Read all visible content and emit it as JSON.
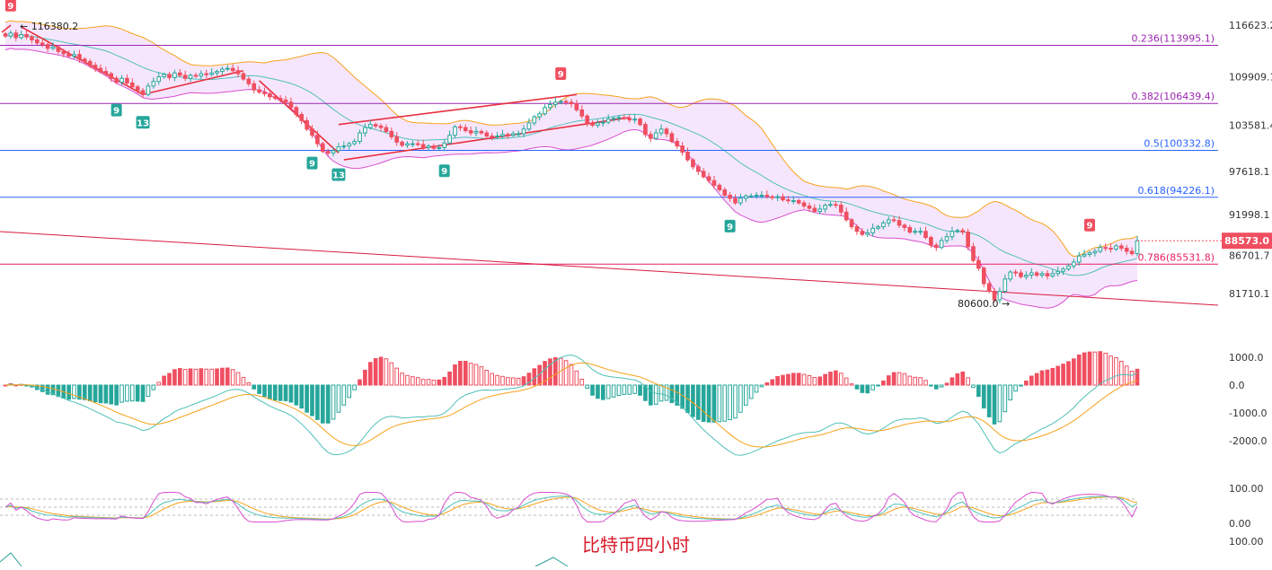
{
  "caption": "比特币四小时",
  "chart_data": {
    "type": "candlestick",
    "main_axis": {
      "min": 77000,
      "max": 117500,
      "ticks": [
        116623.2,
        109909.1,
        103581.4,
        97618.1,
        91998.1,
        86701.7,
        81710.1
      ]
    },
    "current_price": 88573.0,
    "current_price_label": "88573.0",
    "high_label": "116380.2",
    "low_label": "80600.0 →",
    "fib_levels": [
      {
        "label": "0.236(113995.1)",
        "value": 113995.1,
        "color": "#9c27b0"
      },
      {
        "label": "0.382(106439.4)",
        "value": 106439.4,
        "color": "#9c27b0"
      },
      {
        "label": "0.5(100332.8)",
        "value": 100332.8,
        "color": "#2962ff"
      },
      {
        "label": "0.618(94226.1)",
        "value": 94226.1,
        "color": "#2962ff"
      },
      {
        "label": "0.786(85531.8)",
        "value": 85531.8,
        "color": "#e91e63"
      }
    ],
    "td_markers": [
      {
        "text": "9",
        "index": 1,
        "pos": "above",
        "color": "#ef4f60"
      },
      {
        "text": "9",
        "index": 21,
        "pos": "below",
        "color": "#26a69a"
      },
      {
        "text": "13",
        "index": 26,
        "pos": "below",
        "color": "#26a69a"
      },
      {
        "text": "9",
        "index": 58,
        "pos": "below",
        "color": "#26a69a"
      },
      {
        "text": "13",
        "index": 63,
        "pos": "below",
        "color": "#26a69a"
      },
      {
        "text": "9",
        "index": 83,
        "pos": "below",
        "color": "#26a69a"
      },
      {
        "text": "9",
        "index": 105,
        "pos": "above",
        "color": "#ef4f60"
      },
      {
        "text": "9",
        "index": 137,
        "pos": "below",
        "color": "#26a69a"
      },
      {
        "text": "9",
        "index": 205,
        "pos": "above",
        "color": "#ef4f60"
      }
    ],
    "closes": [
      115200,
      115600,
      115000,
      115400,
      115100,
      114700,
      114300,
      114100,
      113600,
      113800,
      113200,
      112900,
      112600,
      112800,
      112200,
      111900,
      111400,
      111000,
      110600,
      110300,
      109700,
      109200,
      109700,
      109100,
      108600,
      108100,
      107600,
      108700,
      109300,
      109900,
      110200,
      109800,
      110400,
      110100,
      109700,
      110100,
      110000,
      110300,
      110200,
      110400,
      110600,
      110900,
      111000,
      110700,
      110300,
      109600,
      109000,
      108200,
      107900,
      107700,
      107300,
      107100,
      106900,
      106600,
      105900,
      105000,
      104200,
      103100,
      102300,
      101200,
      100200,
      100000,
      100300,
      100800,
      100900,
      101200,
      101500,
      102600,
      103300,
      103700,
      103500,
      103300,
      102800,
      102100,
      101400,
      101000,
      101200,
      101200,
      101100,
      100700,
      100900,
      100600,
      100700,
      101300,
      102300,
      103400,
      103300,
      102900,
      102600,
      102800,
      102600,
      102200,
      102100,
      102200,
      102400,
      102300,
      102500,
      102500,
      103100,
      103900,
      104700,
      105100,
      105900,
      106300,
      106600,
      106700,
      106600,
      106400,
      105600,
      104800,
      103900,
      103600,
      103900,
      104000,
      104400,
      104500,
      104600,
      104500,
      104300,
      104400,
      103700,
      102400,
      101900,
      102600,
      103100,
      102500,
      101500,
      100900,
      100100,
      99100,
      98200,
      97600,
      96900,
      96400,
      95800,
      95200,
      94500,
      94100,
      93500,
      94100,
      94400,
      94400,
      94500,
      94500,
      94300,
      94200,
      94300,
      93900,
      93800,
      93800,
      93500,
      93100,
      92800,
      92400,
      92700,
      93200,
      93300,
      93200,
      92300,
      91300,
      90400,
      89800,
      89400,
      89600,
      90200,
      90400,
      90900,
      91300,
      91200,
      90600,
      90300,
      89700,
      89800,
      89800,
      89000,
      88000,
      87700,
      88600,
      89100,
      89800,
      89900,
      89700,
      87800,
      86000,
      85000,
      83000,
      82000,
      80900,
      82000,
      83600,
      84500,
      84400,
      83900,
      84100,
      84400,
      84100,
      84300,
      84000,
      84300,
      84600,
      84900,
      85300,
      85800,
      86600,
      86800,
      87000,
      87200,
      87700,
      87600,
      87500,
      87900,
      87600,
      87200,
      86900,
      88573
    ],
    "macd": {
      "axis_ticks": [
        1000.0,
        0.0,
        -1000.0,
        -2000.0
      ],
      "tick_labels": [
        "1000.0",
        "0.0",
        "-1000.0",
        "-2000.0"
      ]
    },
    "kdj": {
      "axis_ticks": [
        100.0,
        0.0
      ],
      "tick_labels": [
        "100.00",
        "0.00"
      ],
      "lower_label": "100.00"
    }
  },
  "colors": {
    "up": "#26a69a",
    "down": "#ef4f60",
    "boll_upper": "#f7a21b",
    "boll_mid": "#4fc0b8",
    "boll_lower": "#d84fcf",
    "boll_fill": "#f3defc",
    "trend": "#d81b3f",
    "price_tag": "#ef4f60"
  }
}
